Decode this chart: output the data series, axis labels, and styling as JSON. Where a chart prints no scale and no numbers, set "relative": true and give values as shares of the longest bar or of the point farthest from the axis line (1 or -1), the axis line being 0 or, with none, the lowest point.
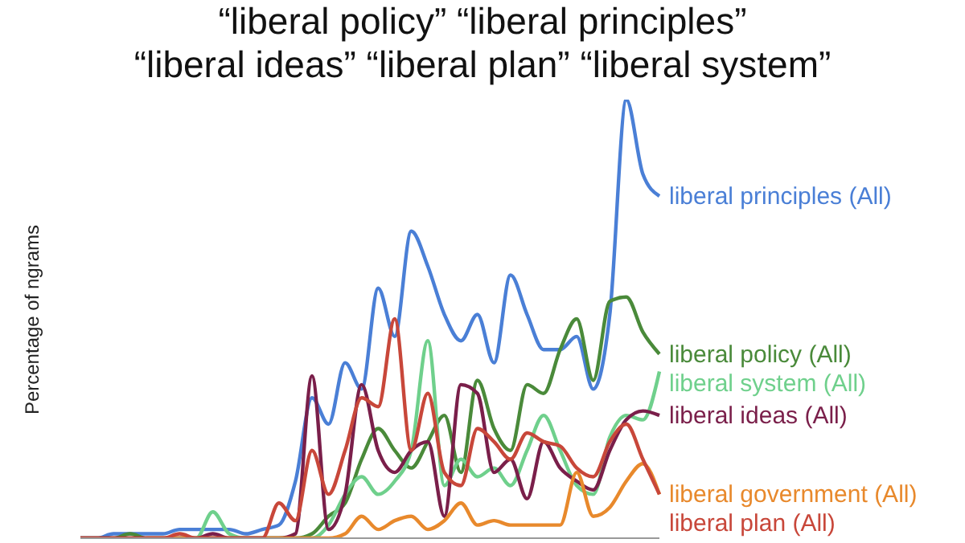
{
  "chart_data": {
    "type": "line",
    "title": "“liberal policy” “liberal principles”",
    "subtitle": "“liberal ideas” “liberal plan” “liberal system”",
    "ylabel": "Percentage of ngrams",
    "relative": true,
    "marker": "none",
    "line_style": "solid",
    "categories": [
      null,
      null,
      null,
      null,
      null,
      null,
      null,
      null,
      null,
      null,
      null,
      null,
      null,
      null,
      null,
      null,
      null,
      null,
      null,
      null,
      null,
      null,
      null,
      null,
      null,
      null,
      null,
      null,
      null,
      null,
      null,
      null,
      null,
      null,
      null,
      null
    ],
    "series": [
      {
        "name": "liberal principles (All)",
        "color": "#4a7fd6",
        "values": [
          0,
          0,
          0.01,
          0.01,
          0.01,
          0.01,
          0.02,
          0.02,
          0.02,
          0.02,
          0.01,
          0.02,
          0.03,
          0.13,
          0.32,
          0.26,
          0.4,
          0.34,
          0.57,
          0.46,
          0.7,
          0.62,
          0.51,
          0.45,
          0.51,
          0.4,
          0.6,
          0.51,
          0.43,
          0.43,
          0.46,
          0.34,
          0.51,
          1,
          0.83,
          0.78
        ]
      },
      {
        "name": "liberal policy (All)",
        "color": "#4a8a3a",
        "values": [
          0,
          0,
          0,
          0.01,
          0,
          0,
          0,
          0,
          0,
          0,
          0,
          0,
          0,
          0,
          0.01,
          0.05,
          0.08,
          0.18,
          0.25,
          0.2,
          0.16,
          0.22,
          0.28,
          0.15,
          0.36,
          0.25,
          0.2,
          0.35,
          0.33,
          0.43,
          0.5,
          0.36,
          0.54,
          0.55,
          0.47,
          0.42
        ]
      },
      {
        "name": "liberal system (All)",
        "color": "#6fd08c",
        "values": [
          null,
          null,
          null,
          null,
          null,
          null,
          0,
          0,
          0.06,
          0.01,
          0,
          0,
          0,
          0,
          0,
          0.03,
          0.1,
          0.14,
          0.1,
          0.13,
          0.2,
          0.45,
          0.12,
          0.18,
          0.14,
          0.16,
          0.12,
          0.2,
          0.28,
          0.2,
          0.12,
          0.1,
          0.23,
          0.28,
          0.27,
          0.38
        ]
      },
      {
        "name": "liberal ideas (All)",
        "color": "#7a1f4a",
        "values": [
          0,
          0,
          0,
          0,
          0,
          0,
          0,
          0,
          0.01,
          0,
          0,
          0,
          0,
          0.01,
          0.37,
          0.02,
          0.1,
          0.35,
          0.2,
          0.15,
          0.2,
          0.22,
          0.05,
          0.35,
          0.33,
          0.15,
          0.18,
          0.09,
          0.22,
          0.16,
          0.13,
          0.11,
          0.2,
          0.27,
          0.29,
          0.28
        ]
      },
      {
        "name": "liberal government (All)",
        "color": "#e8892c",
        "values": [
          null,
          null,
          null,
          null,
          0,
          0,
          0,
          0,
          0,
          0,
          0,
          0,
          0,
          0,
          0,
          0,
          0.01,
          0.05,
          0.02,
          0.04,
          0.05,
          0.02,
          0.04,
          0.08,
          0.03,
          0.04,
          0.03,
          0.03,
          0.03,
          0.03,
          0.15,
          0.05,
          0.07,
          0.13,
          0.17,
          0.1
        ]
      },
      {
        "name": "liberal plan (All)",
        "color": "#c8473a",
        "values": [
          0,
          0,
          0,
          0,
          0,
          0,
          0.01,
          0,
          0,
          0,
          0,
          0,
          0.08,
          0.04,
          0.2,
          0.1,
          0.2,
          0.32,
          0.3,
          0.5,
          0.2,
          0.33,
          0.15,
          0.12,
          0.25,
          0.22,
          0.18,
          0.24,
          0.22,
          0.21,
          0.16,
          0.14,
          0.22,
          0.26,
          0.18,
          0.1
        ]
      }
    ]
  }
}
